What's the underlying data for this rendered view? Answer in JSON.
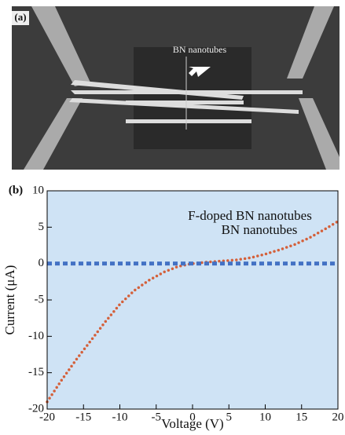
{
  "panel_a": {
    "label": "(a)",
    "annotation": "BN nanotubes"
  },
  "chart_data": {
    "type": "line",
    "panel_label": "(b)",
    "x_label": "Voltage (V)",
    "y_label": "Current (μA)",
    "x": [
      -20,
      -18,
      -16,
      -14,
      -12,
      -10,
      -8,
      -6,
      -4,
      -2,
      0,
      2,
      4,
      6,
      8,
      10,
      12,
      14,
      16,
      18,
      20
    ],
    "series": [
      {
        "name": "F-doped BN nanotubes",
        "color": "#d4603a",
        "values": [
          -19,
          -16,
          -13.2,
          -10.6,
          -8,
          -5.6,
          -3.7,
          -2.3,
          -1.2,
          -0.4,
          0,
          0.2,
          0.35,
          0.5,
          0.8,
          1.3,
          1.9,
          2.6,
          3.5,
          4.6,
          5.8
        ]
      },
      {
        "name": "BN nanotubes",
        "color": "#4472c4",
        "values": [
          0,
          0,
          0,
          0,
          0,
          0,
          0,
          0,
          0,
          0,
          0,
          0,
          0,
          0,
          0,
          0,
          0,
          0,
          0,
          0,
          0
        ]
      }
    ],
    "xlim": [
      -20,
      20
    ],
    "xticks": [
      -20,
      -15,
      -10,
      -5,
      0,
      5,
      10,
      15,
      20
    ],
    "ylim": [
      -20,
      10
    ],
    "yticks": [
      -20,
      -15,
      -10,
      -5,
      0,
      5,
      10
    ],
    "background": "#cfe3f5"
  }
}
